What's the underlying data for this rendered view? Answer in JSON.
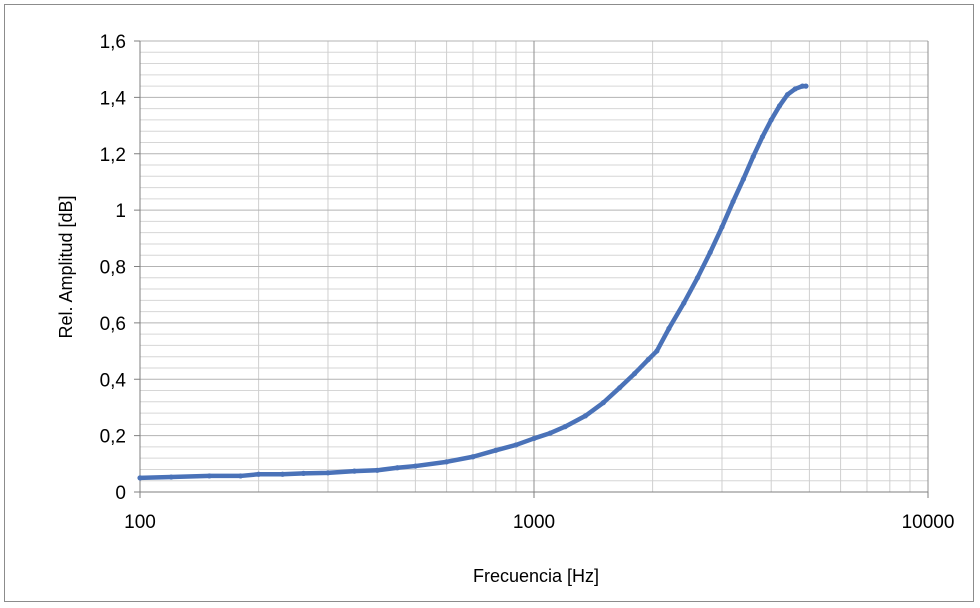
{
  "chart_data": {
    "type": "line",
    "title": "",
    "xlabel": "Frecuencia [Hz]",
    "ylabel": "Rel. Amplitud [dB]",
    "x_scale": "log",
    "xlim": [
      100,
      10000
    ],
    "ylim": [
      0,
      1.6
    ],
    "x_ticks": [
      "100",
      "1000",
      "10000"
    ],
    "y_ticks": [
      "0",
      "0,2",
      "0,4",
      "0,6",
      "0,8",
      "1",
      "1,2",
      "1,4",
      "1,6"
    ],
    "grid": true,
    "legend": "none",
    "series": [
      {
        "color": "#4a72b8",
        "x": [
          100,
          120,
          150,
          180,
          200,
          230,
          260,
          300,
          350,
          400,
          450,
          500,
          600,
          700,
          800,
          900,
          1000,
          1100,
          1200,
          1350,
          1500,
          1650,
          1800,
          1950,
          2050,
          2200,
          2400,
          2600,
          2800,
          3000,
          3200,
          3400,
          3600,
          3800,
          4000,
          4200,
          4400,
          4600,
          4800,
          4900
        ],
        "y": [
          0.05,
          0.053,
          0.057,
          0.057,
          0.063,
          0.063,
          0.066,
          0.068,
          0.074,
          0.077,
          0.086,
          0.092,
          0.107,
          0.125,
          0.148,
          0.167,
          0.19,
          0.209,
          0.232,
          0.27,
          0.317,
          0.37,
          0.42,
          0.47,
          0.5,
          0.58,
          0.67,
          0.76,
          0.85,
          0.94,
          1.03,
          1.11,
          1.19,
          1.26,
          1.32,
          1.37,
          1.41,
          1.43,
          1.44,
          1.44
        ]
      }
    ]
  }
}
